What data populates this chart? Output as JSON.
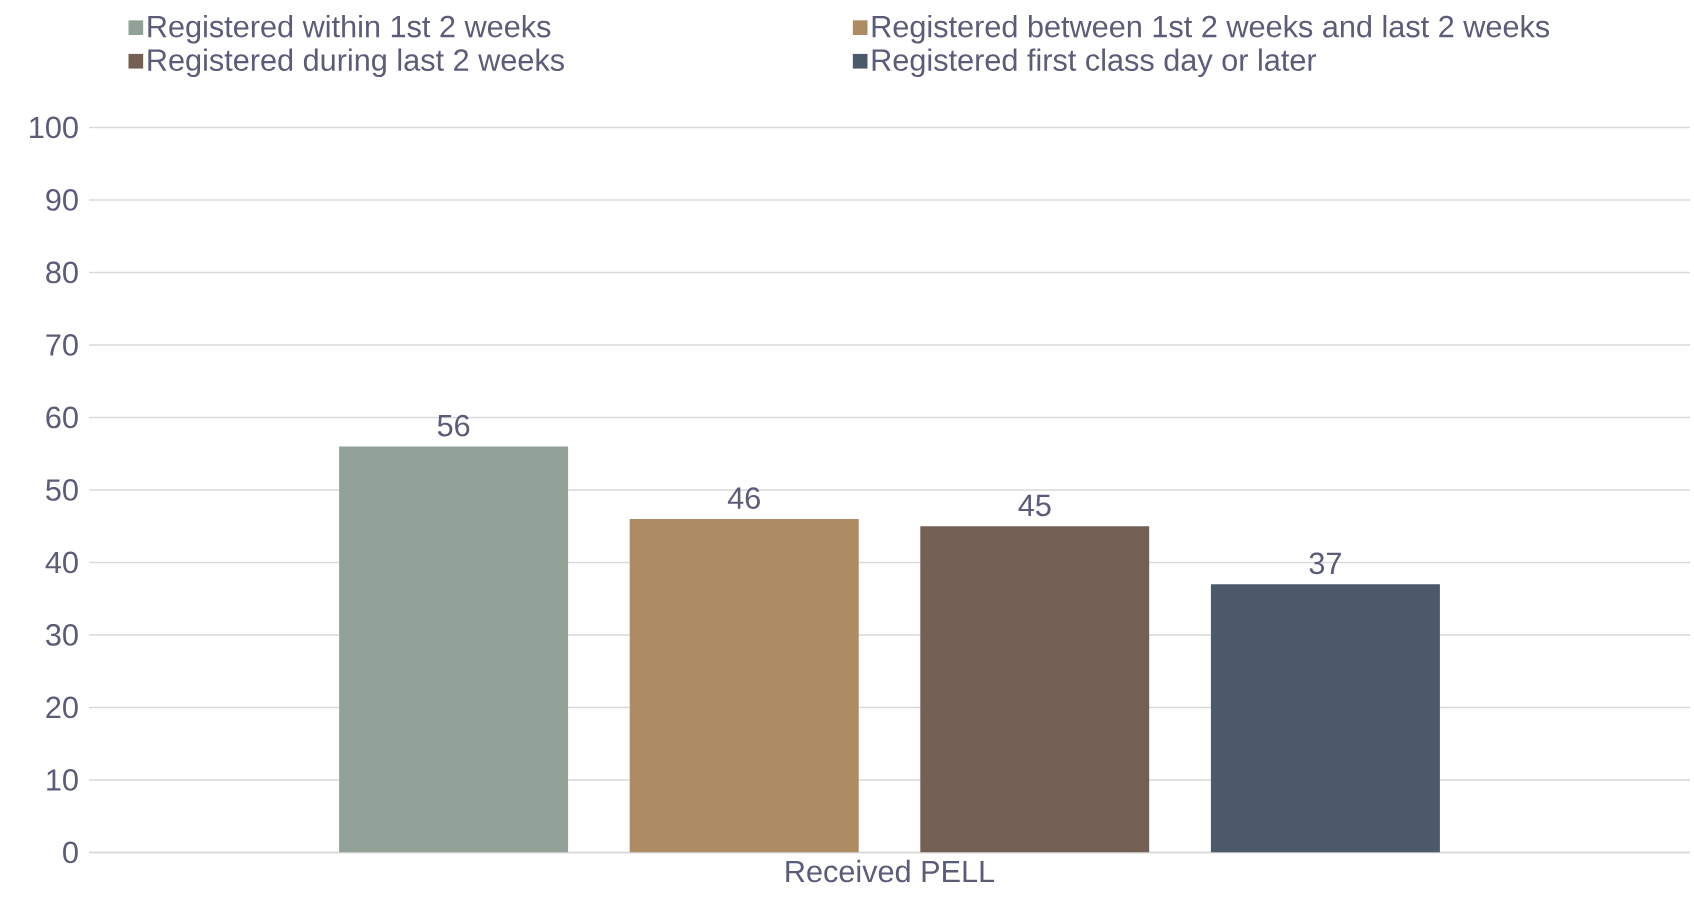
{
  "chart_data": {
    "type": "bar",
    "categories": [
      "Received PELL"
    ],
    "series": [
      {
        "name": "Registered within 1st 2 weeks",
        "color": "#92a197",
        "values": [
          56
        ]
      },
      {
        "name": "Registered between 1st 2 weeks and last 2 weeks",
        "color": "#ad8c64",
        "values": [
          46
        ]
      },
      {
        "name": "Registered during last 2 weeks",
        "color": "#735f54",
        "values": [
          45
        ]
      },
      {
        "name": "Registered first class day or later",
        "color": "#4c5968",
        "values": [
          37
        ]
      }
    ],
    "ylim": [
      0,
      100
    ],
    "yticks": [
      0,
      10,
      20,
      30,
      40,
      50,
      60,
      70,
      80,
      90,
      100
    ],
    "grid": "y",
    "legend": "top",
    "data_labels": true
  }
}
